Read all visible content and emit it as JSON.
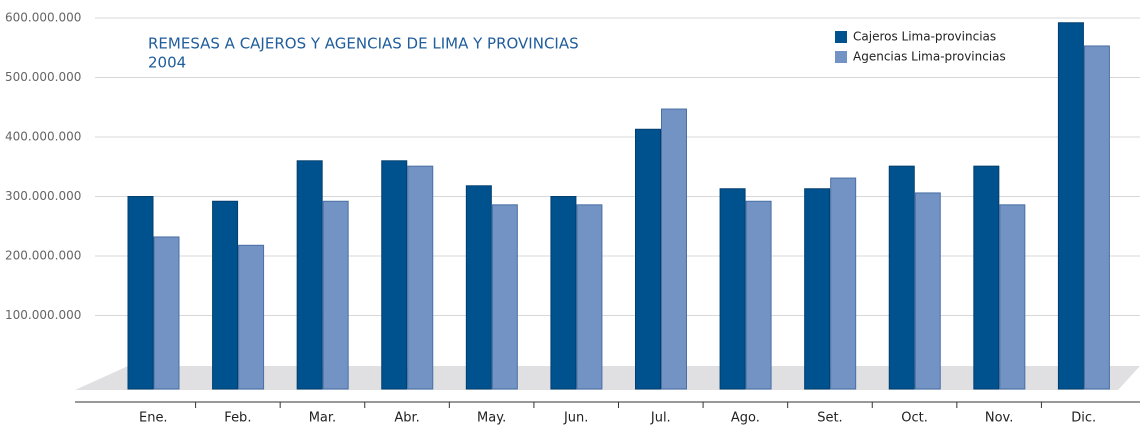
{
  "chart_data": {
    "type": "bar",
    "title": "REMESAS A CAJEROS Y AGENCIAS DE LIMA Y PROVINCIAS",
    "subtitle": "2004",
    "categories": [
      "Ene.",
      "Feb.",
      "Mar.",
      "Abr.",
      "May.",
      "Jun.",
      "Jul.",
      "Ago.",
      "Set.",
      "Oct.",
      "Nov.",
      "Dic."
    ],
    "series": [
      {
        "name": "Cajeros Lima-provincias",
        "color": "#00528f",
        "values": [
          300000000,
          292000000,
          360000000,
          360000000,
          318000000,
          300000000,
          413000000,
          313000000,
          313000000,
          351000000,
          351000000,
          592000000
        ]
      },
      {
        "name": "Agencias Lima-provincias",
        "color": "#7293c3",
        "values": [
          232000000,
          218000000,
          292000000,
          351000000,
          286000000,
          286000000,
          447000000,
          292000000,
          331000000,
          306000000,
          286000000,
          553000000
        ]
      }
    ],
    "ylim": [
      0,
      600000000
    ],
    "yticks": [
      {
        "value": 100000000,
        "label": "100.000.000"
      },
      {
        "value": 200000000,
        "label": "200.000.000"
      },
      {
        "value": 300000000,
        "label": "300.000.000"
      },
      {
        "value": 400000000,
        "label": "400.000.000"
      },
      {
        "value": 500000000,
        "label": "500.000.000"
      },
      {
        "value": 600000000,
        "label": "600.000.000"
      }
    ],
    "grid": true,
    "legend": "top-right"
  }
}
